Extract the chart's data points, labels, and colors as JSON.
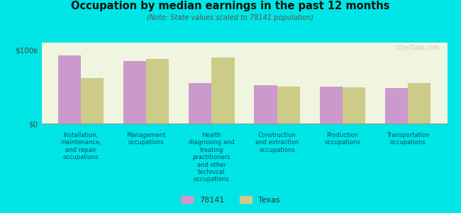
{
  "title": "Occupation by median earnings in the past 12 months",
  "subtitle": "(Note: State values scaled to 78141 population)",
  "background_color": "#00e5e5",
  "plot_bg_color": "#f0f5e0",
  "categories": [
    "Installation,\nmaintenance,\nand repair\noccupations",
    "Management\noccupations",
    "Health\ndiagnosing and\ntreating\npractitioners\nand other\ntechnical\noccupations",
    "Construction\nand extraction\noccupations",
    "Production\noccupations",
    "Transportation\noccupations"
  ],
  "values_78141": [
    93000,
    85000,
    55000,
    52000,
    50000,
    48000
  ],
  "values_texas": [
    62000,
    88000,
    90000,
    50000,
    49000,
    55000
  ],
  "color_78141": "#cc99cc",
  "color_texas": "#cccc88",
  "ylim": [
    0,
    110000
  ],
  "yticks": [
    0,
    100000
  ],
  "ytick_labels": [
    "$0",
    "$100k"
  ],
  "legend_labels": [
    "78141",
    "Texas"
  ],
  "bar_width": 0.35,
  "watermark": "City-Data.com"
}
